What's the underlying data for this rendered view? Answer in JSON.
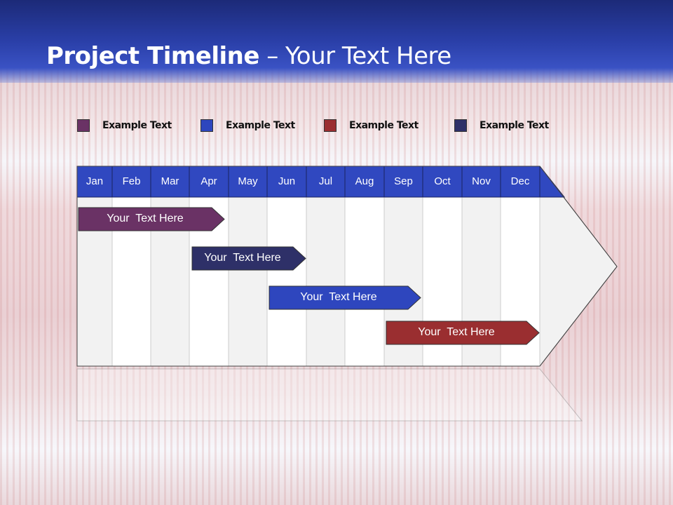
{
  "title": {
    "bold": "Project Timeline",
    "rest": " – Your Text Here"
  },
  "legend": [
    {
      "label": "Example Text",
      "color": "#6a3265"
    },
    {
      "label": "Example Text",
      "color": "#2e46be"
    },
    {
      "label": "Example Text",
      "color": "#9a2e30"
    },
    {
      "label": "Example Text",
      "color": "#2e3068"
    }
  ],
  "months": [
    "Jan",
    "Feb",
    "Mar",
    "Apr",
    "May",
    "Jun",
    "Jul",
    "Aug",
    "Sep",
    "Oct",
    "Nov",
    "Dec"
  ],
  "tasks": [
    {
      "label": "Your  Text Here",
      "color": "#6a3265",
      "start_month": "Jan",
      "end_month": "Apr"
    },
    {
      "label": "Your  Text Here",
      "color": "#2e3068",
      "start_month": "Apr",
      "end_month": "Jun"
    },
    {
      "label": "Your  Text Here",
      "color": "#2e46be",
      "start_month": "Jun",
      "end_month": "Sep"
    },
    {
      "label": "Your  Text Here",
      "color": "#9a2e30",
      "start_month": "Sep",
      "end_month": "Dec"
    }
  ],
  "colors": {
    "header": "#3048c0",
    "band": "#2a3fa8"
  }
}
